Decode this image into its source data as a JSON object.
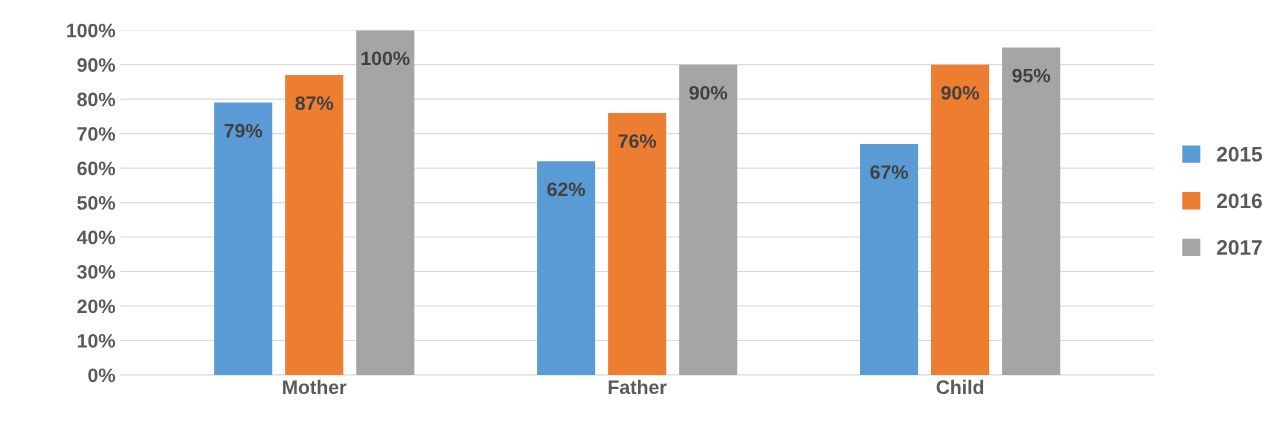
{
  "chart_data": {
    "type": "bar",
    "categories": [
      "Mother",
      "Father",
      "Child"
    ],
    "series": [
      {
        "name": "2015",
        "color": "#5b9bd5",
        "values": [
          79,
          62,
          67
        ]
      },
      {
        "name": "2016",
        "color": "#ed7d31",
        "values": [
          87,
          76,
          90
        ]
      },
      {
        "name": "2017",
        "color": "#a5a5a5",
        "values": [
          100,
          90,
          95
        ]
      }
    ],
    "ylim": [
      0,
      100
    ],
    "yticks": [
      {
        "value": 0,
        "label": "0%"
      },
      {
        "value": 10,
        "label": "10%"
      },
      {
        "value": 20,
        "label": "20%"
      },
      {
        "value": 30,
        "label": "30%"
      },
      {
        "value": 40,
        "label": "40%"
      },
      {
        "value": 50,
        "label": "50%"
      },
      {
        "value": 60,
        "label": "60%"
      },
      {
        "value": 70,
        "label": "70%"
      },
      {
        "value": 80,
        "label": "80%"
      },
      {
        "value": 90,
        "label": "90%"
      },
      {
        "value": 100,
        "label": "100%"
      }
    ],
    "value_labels": [
      [
        "79%",
        "62%",
        "67%"
      ],
      [
        "87%",
        "76%",
        "90%"
      ],
      [
        "100%",
        "90%",
        "95%"
      ]
    ],
    "grid": "y",
    "legend": "right"
  }
}
